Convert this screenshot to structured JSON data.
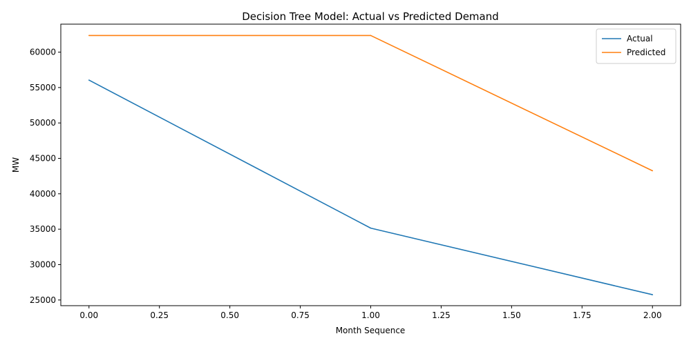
{
  "chart_data": {
    "type": "line",
    "title": "Decision Tree Model: Actual vs Predicted Demand",
    "xlabel": "Month Sequence",
    "ylabel": "MW",
    "x": [
      0,
      1,
      2
    ],
    "xlim": [
      -0.1,
      2.1
    ],
    "ylim": [
      24200,
      63950
    ],
    "xticks": [
      0.0,
      0.25,
      0.5,
      0.75,
      1.0,
      1.25,
      1.5,
      1.75,
      2.0
    ],
    "xtick_labels": [
      "0.00",
      "0.25",
      "0.50",
      "0.75",
      "1.00",
      "1.25",
      "1.50",
      "1.75",
      "2.00"
    ],
    "yticks": [
      25000,
      30000,
      35000,
      40000,
      45000,
      50000,
      55000,
      60000
    ],
    "ytick_labels": [
      "25000",
      "30000",
      "35000",
      "40000",
      "45000",
      "50000",
      "55000",
      "60000"
    ],
    "series": [
      {
        "name": "Actual",
        "values": [
          56050,
          35150,
          25750
        ],
        "color": "#1f77b4"
      },
      {
        "name": "Predicted",
        "values": [
          62350,
          62350,
          43250
        ],
        "color": "#ff7f0e"
      }
    ],
    "grid": false,
    "legend_position": "top-right"
  }
}
